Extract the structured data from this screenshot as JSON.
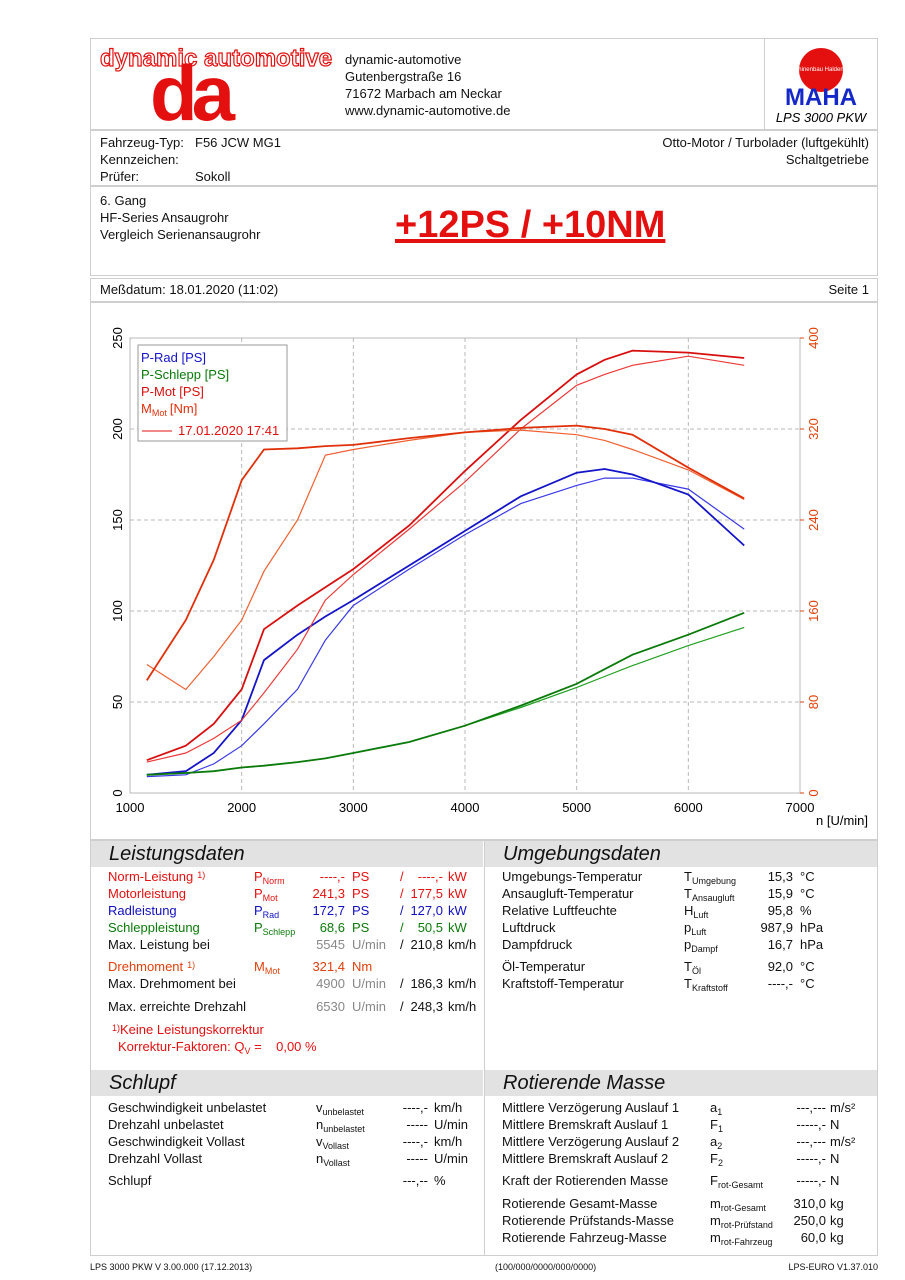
{
  "header": {
    "logo_text": "dynamic automotive",
    "logo_mark": "da",
    "address": [
      "dynamic-automotive",
      "Gutenbergstraße 16",
      "71672 Marbach am Neckar",
      "www.dynamic-automotive.de"
    ],
    "maha_ring": "Maschinenbau Haldenwang",
    "maha": "MAHA",
    "product": "LPS 3000 PKW"
  },
  "vehicle": {
    "left": [
      {
        "label": "Fahrzeug-Typ:",
        "value": "F56 JCW MG1"
      },
      {
        "label": "Kennzeichen:"
      },
      {
        "label": "Prüfer:",
        "value": "Sokoll"
      }
    ],
    "right": [
      "Otto-Motor / Turbolader (luftgekühlt)",
      "Schaltgetriebe"
    ]
  },
  "test": {
    "notes": [
      "6. Gang",
      "HF-Series Ansaugrohr",
      "Vergleich Serienansaugrohr"
    ],
    "headline": "+12PS / +10NM"
  },
  "measurement": {
    "date": "Meßdatum: 18.01.2020 (11:02)",
    "page": "Seite 1"
  },
  "chart_data": {
    "type": "line",
    "x_label": "n [U/min]",
    "legend": "upper left",
    "legend_compare": "17.01.2020 17:41",
    "compare_color": "#e41010",
    "grid": true,
    "x": [
      1150,
      1500,
      1750,
      2000,
      2200,
      2500,
      2750,
      3000,
      3500,
      4000,
      4500,
      5000,
      5250,
      5500,
      6000,
      6500
    ],
    "xlim": [
      1000,
      7000
    ],
    "xticks": [
      1000,
      2000,
      3000,
      4000,
      5000,
      6000,
      7000
    ],
    "ylim": [
      0,
      250
    ],
    "yticks": [
      0,
      50,
      100,
      150,
      200,
      250
    ],
    "y2lim": [
      0,
      400
    ],
    "y2ticks": [
      0,
      80,
      160,
      240,
      320,
      400
    ],
    "y2_color": "#e0400a",
    "series": [
      {
        "name": "P-Rad [PS]",
        "color": "#1414c8",
        "compare_color": "#3a3ae6",
        "values": [
          10,
          12,
          22,
          40,
          73,
          87,
          97,
          106,
          125,
          144,
          163,
          176,
          178,
          175,
          164,
          136
        ],
        "compare_values": [
          9,
          10,
          16,
          26,
          38,
          57,
          84,
          103,
          123,
          142,
          159,
          169,
          173,
          173,
          167,
          145
        ]
      },
      {
        "name": "P-Schlepp [PS]",
        "color": "#0a7a0a",
        "compare_color": "#22a022",
        "values": [
          10,
          11,
          12,
          14,
          15,
          17,
          19,
          22,
          28,
          37,
          48,
          60,
          68,
          76,
          87,
          99
        ],
        "compare_values": [
          10,
          11,
          12,
          14,
          15,
          17,
          19,
          22,
          28,
          37,
          47,
          58,
          64,
          70,
          81,
          91
        ]
      },
      {
        "name": "P-Mot [PS]",
        "color": "#d80f0f",
        "compare_color": "#ec3a3a",
        "values": [
          18,
          26,
          38,
          57,
          90,
          103,
          113,
          123,
          147,
          177,
          205,
          230,
          238,
          243,
          242,
          239
        ],
        "compare_values": [
          17,
          22,
          30,
          40,
          55,
          79,
          106,
          120,
          145,
          171,
          200,
          224,
          230,
          235,
          240,
          235
        ]
      },
      {
        "name": "M",
        "name_sub": "Mot",
        "name_unit": "[Nm]",
        "axis": "y2",
        "color": "#e0300a",
        "compare_color": "#f06030",
        "values": [
          99,
          152,
          205,
          275,
          302,
          303,
          305,
          306,
          312,
          317,
          321,
          323,
          320,
          315,
          286,
          259
        ],
        "compare_values": [
          113,
          91,
          120,
          152,
          195,
          240,
          297,
          302,
          310,
          317,
          319,
          315,
          310,
          302,
          284,
          258
        ]
      }
    ]
  },
  "performance": {
    "title": "Leistungsdaten",
    "rows": [
      {
        "label": "Norm-Leistung",
        "foot": "1)",
        "sym": "P",
        "sub": "Norm",
        "v1": "----,-",
        "u1": "PS",
        "sep": "/",
        "v2": "----,-",
        "u2": "kW",
        "color": "#e41010"
      },
      {
        "label": "Motorleistung",
        "sym": "P",
        "sub": "Mot",
        "v1": "241,3",
        "u1": "PS",
        "sep": "/",
        "v2": "177,5",
        "u2": "kW",
        "color": "#e41010"
      },
      {
        "label": "Radleistung",
        "sym": "P",
        "sub": "Rad",
        "v1": "172,7",
        "u1": "PS",
        "sep": "/",
        "v2": "127,0",
        "u2": "kW",
        "color": "#1010c0"
      },
      {
        "label": "Schleppleistung",
        "sym": "P",
        "sub": "Schlepp",
        "v1": "68,6",
        "u1": "PS",
        "sep": "/",
        "v2": "50,5",
        "u2": "kW",
        "color": "#0a7a0a"
      },
      {
        "label": "Max. Leistung bei",
        "v1": "5545",
        "u1": "U/min",
        "sep": "/",
        "v2": "210,8",
        "u2": "km/h",
        "color": "#111111",
        "muted": "#888888"
      },
      {
        "label": "Drehmoment",
        "foot": "1)",
        "sym": "M",
        "sub": "Mot",
        "v1": "321,4",
        "u1": "Nm",
        "color": "#e0400a"
      },
      {
        "label": "Max. Drehmoment bei",
        "v1": "4900",
        "u1": "U/min",
        "sep": "/",
        "v2": "186,3",
        "u2": "km/h",
        "color": "#111111",
        "muted": "#888888"
      },
      {
        "label": "Max. erreichte Drehzahl",
        "v1": "6530",
        "u1": "U/min",
        "sep": "/",
        "v2": "248,3",
        "u2": "km/h",
        "color": "#111111",
        "muted": "#888888"
      }
    ],
    "note": {
      "mark": "1)",
      "line1": "Keine Leistungskorrektur",
      "line2": "Korrektur-Faktoren: Q",
      "sub": "V",
      "line2_end": " =    0,00 %"
    }
  },
  "ambient": {
    "title": "Umgebungsdaten",
    "rows": [
      {
        "label": "Umgebungs-Temperatur",
        "sym": "T",
        "sub": "Umgebung",
        "v": "15,3",
        "u": "°C"
      },
      {
        "label": "Ansaugluft-Temperatur",
        "sym": "T",
        "sub": "Ansaugluft",
        "v": "15,9",
        "u": "°C"
      },
      {
        "label": "Relative Luftfeuchte",
        "sym": "H",
        "sub": "Luft",
        "v": "95,8",
        "u": "%"
      },
      {
        "label": "Luftdruck",
        "sym": "p",
        "sub": "Luft",
        "v": "987,9",
        "u": "hPa"
      },
      {
        "label": "Dampfdruck",
        "sym": "p",
        "sub": "Dampf",
        "v": "16,7",
        "u": "hPa"
      },
      {
        "label": "Öl-Temperatur",
        "sym": "T",
        "sub": "Öl",
        "v": "92,0",
        "u": "°C"
      },
      {
        "label": "Kraftstoff-Temperatur",
        "sym": "T",
        "sub": "Kraftstoff",
        "v": "----,-",
        "u": "°C"
      }
    ]
  },
  "slip": {
    "title": "Schlupf",
    "rows": [
      {
        "label": "Geschwindigkeit unbelastet",
        "sym": "v",
        "sub": "unbelastet",
        "v": "----,-",
        "u": "km/h"
      },
      {
        "label": "Drehzahl unbelastet",
        "sym": "n",
        "sub": "unbelastet",
        "v": "-----",
        "u": "U/min"
      },
      {
        "label": "Geschwindigkeit Vollast",
        "sym": "v",
        "sub": "Vollast",
        "v": "----,-",
        "u": "km/h"
      },
      {
        "label": "Drehzahl Vollast",
        "sym": "n",
        "sub": "Vollast",
        "v": "-----",
        "u": "U/min"
      },
      {
        "label": "Schlupf",
        "v": "---,--",
        "u": "%"
      }
    ]
  },
  "rotating": {
    "title": "Rotierende Masse",
    "rows": [
      {
        "label": "Mittlere Verzögerung Auslauf 1",
        "sym": "a",
        "sub": "1",
        "v": "---,---",
        "u": "m/s²"
      },
      {
        "label": "Mittlere Bremskraft Auslauf 1",
        "sym": "F",
        "sub": "1",
        "v": "-----,-",
        "u": "N"
      },
      {
        "label": "Mittlere Verzögerung Auslauf 2",
        "sym": "a",
        "sub": "2",
        "v": "---,---",
        "u": "m/s²"
      },
      {
        "label": "Mittlere Bremskraft Auslauf 2",
        "sym": "F",
        "sub": "2",
        "v": "-----,-",
        "u": "N"
      },
      {
        "label": "Kraft der Rotierenden Masse",
        "sym": "F",
        "sub": "rot-Gesamt",
        "v": "-----,-",
        "u": "N"
      },
      {
        "label": "Rotierende Gesamt-Masse",
        "sym": "m",
        "sub": "rot-Gesamt",
        "v": "310,0",
        "u": "kg"
      },
      {
        "label": "Rotierende Prüfstands-Masse",
        "sym": "m",
        "sub": "rot-Prüfstand",
        "v": "250,0",
        "u": "kg"
      },
      {
        "label": "Rotierende Fahrzeug-Masse",
        "sym": "m",
        "sub": "rot-Fahrzeug",
        "v": "60,0",
        "u": "kg"
      }
    ]
  },
  "footer": [
    "LPS 3000 PKW V 3.00.000 (17.12.2013)",
    "(100/000/0000/000/0000)",
    "LPS-EURO V1.37.010"
  ]
}
